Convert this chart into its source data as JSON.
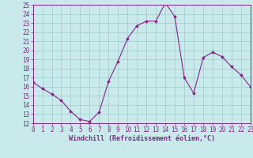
{
  "x": [
    0,
    1,
    2,
    3,
    4,
    5,
    6,
    7,
    8,
    9,
    10,
    11,
    12,
    13,
    14,
    15,
    16,
    17,
    18,
    19,
    20,
    21,
    22,
    23
  ],
  "y": [
    16.5,
    15.8,
    15.2,
    14.5,
    13.3,
    12.4,
    12.2,
    13.2,
    16.6,
    18.8,
    21.3,
    22.7,
    23.2,
    23.2,
    25.2,
    23.7,
    17.0,
    15.3,
    19.2,
    19.8,
    19.3,
    18.2,
    17.3,
    16.0
  ],
  "bg_color": "#c8eaea",
  "line_color": "#882288",
  "marker_color": "#882288",
  "grid_color": "#99cccc",
  "xlabel": "Windchill (Refroidissement éolien,°C)",
  "xlabel_color": "#882288",
  "tick_color": "#882288",
  "ylim": [
    12,
    25
  ],
  "yticks": [
    12,
    13,
    14,
    15,
    16,
    17,
    18,
    19,
    20,
    21,
    22,
    23,
    24,
    25
  ],
  "xticks": [
    0,
    1,
    2,
    3,
    4,
    5,
    6,
    7,
    8,
    9,
    10,
    11,
    12,
    13,
    14,
    15,
    16,
    17,
    18,
    19,
    20,
    21,
    22,
    23
  ],
  "spine_color": "#882288",
  "tick_fontsize": 5.5,
  "xlabel_fontsize": 6.0
}
